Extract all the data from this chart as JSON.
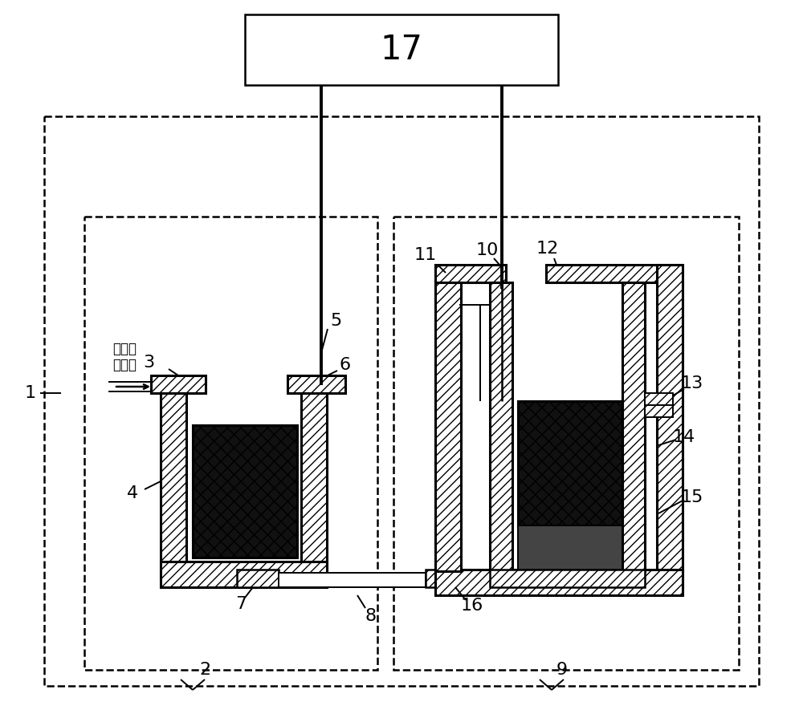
{
  "bg": "#ffffff",
  "lc": "#000000",
  "lw_thick": 2.2,
  "lw_med": 1.8,
  "lw_thin": 1.4,
  "lw_dash": 1.8,
  "fs": 16,
  "box17": "17",
  "chinese": "预处理\n后水样",
  "hatch_wall": "///",
  "hatch_elec": "xx"
}
